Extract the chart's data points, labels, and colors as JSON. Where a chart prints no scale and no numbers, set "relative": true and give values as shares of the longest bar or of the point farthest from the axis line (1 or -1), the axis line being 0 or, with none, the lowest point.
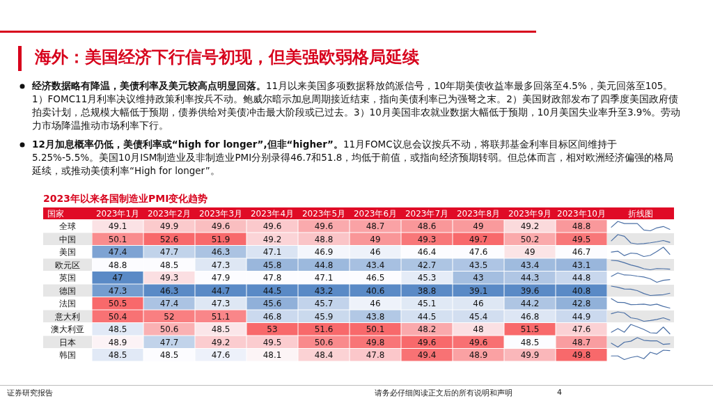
{
  "chart_data": [
    {
      "type": "heatmap",
      "title": "海外：美国经济下行信号初现，但美强欧弱格局延续",
      "subtitle": "2023年以来各国制造业PMI变化趋势",
      "ylabel": "国家",
      "data_labels": true,
      "categories": [
        "2023年1月",
        "2023年2月",
        "2023年3月",
        "2023年4月",
        "2023年5月",
        "2023年6月",
        "2023年7月",
        "2023年8月",
        "2023年9月",
        "2023年10月"
      ],
      "y_categories": [
        "全球",
        "中国",
        "美国",
        "欧元区",
        "英国",
        "德国",
        "法国",
        "意大利",
        "澳大利亚",
        "日本",
        "韩国"
      ],
      "cells": [
        [
          49.1,
          49.9,
          49.6,
          49.6,
          49.6,
          48.7,
          48.6,
          49,
          49.2,
          48.8
        ],
        [
          50.1,
          52.6,
          51.9,
          49.2,
          48.8,
          49,
          49.3,
          49.7,
          50.2,
          49.5
        ],
        [
          47.4,
          47.7,
          46.3,
          47.1,
          46.9,
          46,
          46.4,
          47.6,
          49,
          46.7
        ],
        [
          48.8,
          48.5,
          47.3,
          45.8,
          44.8,
          43.4,
          42.7,
          43.5,
          43.4,
          43.1
        ],
        [
          47,
          49.3,
          47.9,
          47.8,
          47.1,
          46.5,
          45.3,
          43,
          44.3,
          44.8
        ],
        [
          47.3,
          46.3,
          44.7,
          44.5,
          43.2,
          40.6,
          38.8,
          39.1,
          39.6,
          40.8
        ],
        [
          50.5,
          47.4,
          47.3,
          45.6,
          45.7,
          46,
          45.1,
          46,
          44.2,
          42.8
        ],
        [
          50.4,
          52,
          51.1,
          46.8,
          45.9,
          43.8,
          44.5,
          45.4,
          46.8,
          44.9
        ],
        [
          48.5,
          50.6,
          48.5,
          53,
          51.6,
          50.1,
          48.2,
          48,
          51.5,
          47.6
        ],
        [
          48.9,
          47.7,
          49.2,
          49.5,
          50.6,
          49.8,
          49.6,
          49.6,
          48.5,
          48.7
        ],
        [
          48.5,
          48.5,
          47.6,
          48.1,
          48.4,
          47.8,
          49.4,
          48.9,
          49.9,
          49.8
        ]
      ],
      "annotations": [
        "经济数据略有降温，美债利率及美元较高点明显回落。",
        "11月以来美国多项数据释放鸽派信号，10年期美债收益率最多回落至4.5%，美元回落至105。1）FOMC11月利率决议维持政策利率按兵不动。鲍威尔暗示加息周期接近结束，指向美债利率已为强弩之末。2）美国财政部发布了四季度美国政府债拍卖计划，总规模大幅低于预期，债券供给对美债冲击最大阶段或已过去。3）10月美国非农就业数据大幅低于预期，10月美国失业率升至3.9%。劳动力市场降温推动市场利率下行。",
        "12月加息概率仍低，美债利率或“high for longer”,但非“higher”。",
        "11月FOMC议息会议按兵不动，将联邦基金利率目标区间维持于5.25%-5.5%。美国10月ISM制造业及非制造业PMI分别录得46.7和51.8，均低于前值，或指向经济预期转弱。但总体而言，相对欧洲经济偏强的格局延续，或推动美债利率“High for longer”。",
        "证券研究报告",
        "请务必仔细阅读正文后的所有说明和声明",
        "4"
      ]
    },
    {
      "type": "line",
      "title": "折线图",
      "relative": true,
      "color": "#4a6fa5",
      "categories": [
        null,
        null,
        null,
        null,
        null,
        null,
        null,
        null,
        null,
        null
      ],
      "values": [
        0.38,
        1,
        0.77,
        0.77,
        0.77,
        0.08,
        0,
        0.31,
        0.46,
        0.15
      ]
    },
    {
      "type": "line",
      "relative": true,
      "color": "#4a6fa5",
      "categories": [
        null,
        null,
        null,
        null,
        null,
        null,
        null,
        null,
        null,
        null
      ],
      "values": [
        0.34,
        1,
        0.82,
        0.11,
        0,
        0.05,
        0.13,
        0.24,
        0.37,
        0.18
      ]
    },
    {
      "type": "line",
      "relative": true,
      "color": "#4a6fa5",
      "categories": [
        null,
        null,
        null,
        null,
        null,
        null,
        null,
        null,
        null,
        null
      ],
      "values": [
        0.47,
        0.57,
        0.1,
        0.37,
        0.3,
        0,
        0.13,
        0.53,
        1,
        0.23
      ]
    },
    {
      "type": "line",
      "relative": true,
      "color": "#4a6fa5",
      "categories": [
        null,
        null,
        null,
        null,
        null,
        null,
        null,
        null,
        null,
        null
      ],
      "values": [
        1,
        0.95,
        0.75,
        0.51,
        0.34,
        0.11,
        0,
        0.13,
        0.11,
        0.07
      ]
    },
    {
      "type": "line",
      "relative": true,
      "color": "#4a6fa5",
      "categories": [
        null,
        null,
        null,
        null,
        null,
        null,
        null,
        null,
        null,
        null
      ],
      "values": [
        0.63,
        1,
        0.78,
        0.76,
        0.65,
        0.56,
        0.37,
        0,
        0.21,
        0.29
      ]
    },
    {
      "type": "line",
      "relative": true,
      "color": "#4a6fa5",
      "categories": [
        null,
        null,
        null,
        null,
        null,
        null,
        null,
        null,
        null,
        null
      ],
      "values": [
        1,
        0.88,
        0.69,
        0.67,
        0.52,
        0.21,
        0,
        0.04,
        0.09,
        0.24
      ]
    },
    {
      "type": "line",
      "relative": true,
      "color": "#4a6fa5",
      "categories": [
        null,
        null,
        null,
        null,
        null,
        null,
        null,
        null,
        null,
        null
      ],
      "values": [
        1,
        0.6,
        0.58,
        0.36,
        0.38,
        0.42,
        0.3,
        0.42,
        0.18,
        0
      ]
    },
    {
      "type": "line",
      "relative": true,
      "color": "#4a6fa5",
      "categories": [
        null,
        null,
        null,
        null,
        null,
        null,
        null,
        null,
        null,
        null
      ],
      "values": [
        0.8,
        1,
        0.89,
        0.37,
        0.26,
        0,
        0.09,
        0.2,
        0.37,
        0.13
      ]
    },
    {
      "type": "line",
      "relative": true,
      "color": "#4a6fa5",
      "categories": [
        null,
        null,
        null,
        null,
        null,
        null,
        null,
        null,
        null,
        null
      ],
      "values": [
        0.17,
        0.56,
        0.17,
        1,
        0.74,
        0.46,
        0.11,
        0.07,
        0.72,
        0
      ]
    },
    {
      "type": "line",
      "relative": true,
      "color": "#4a6fa5",
      "categories": [
        null,
        null,
        null,
        null,
        null,
        null,
        null,
        null,
        null,
        null
      ],
      "values": [
        0.41,
        0,
        0.52,
        0.62,
        1,
        0.72,
        0.66,
        0.66,
        0.28,
        0.34
      ]
    },
    {
      "type": "line",
      "relative": true,
      "color": "#4a6fa5",
      "categories": [
        null,
        null,
        null,
        null,
        null,
        null,
        null,
        null,
        null,
        null
      ],
      "values": [
        0.39,
        0.39,
        0,
        0.22,
        0.35,
        0.09,
        0.78,
        0.57,
        1,
        0.96
      ]
    }
  ]
}
